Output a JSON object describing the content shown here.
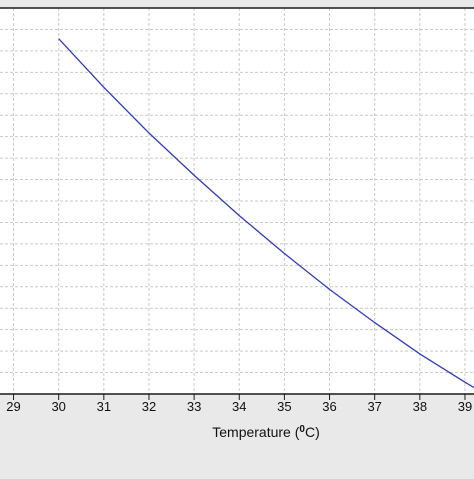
{
  "chart_data": {
    "type": "line",
    "xlabel": "Temperature (⁰C)",
    "xlabel_main": "Temperature (",
    "xlabel_sup": "0",
    "xlabel_tail": "C)",
    "xlim": [
      28.7,
      39.2
    ],
    "x_ticks": [
      29,
      30,
      31,
      32,
      33,
      34,
      35,
      36,
      37,
      38,
      39
    ],
    "ylim": [
      0,
      18
    ],
    "y_gridlines": 18,
    "grid": true,
    "series": [
      {
        "color": "#2f3cb8",
        "x": [
          30.0,
          31.0,
          32.0,
          33.0,
          34.0,
          35.0,
          36.0,
          37.0,
          38.0,
          39.0,
          39.2
        ],
        "y": [
          16.57,
          14.3,
          12.17,
          10.2,
          8.32,
          6.55,
          4.88,
          3.33,
          1.87,
          0.55,
          0.3
        ]
      }
    ]
  }
}
